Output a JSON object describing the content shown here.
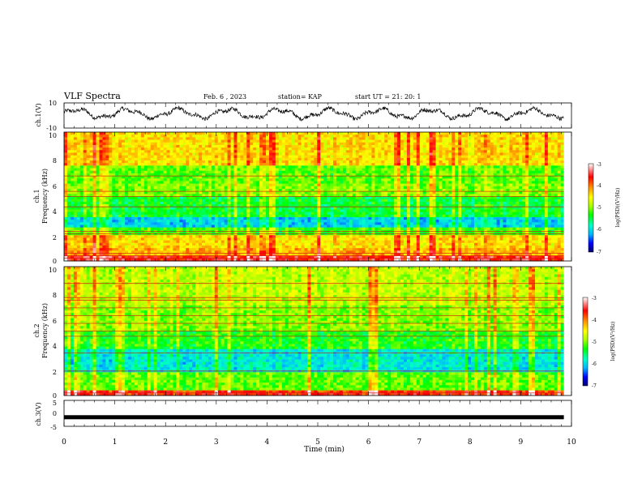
{
  "header": {
    "title": "VLF Spectra",
    "date": "Feb. 6 , 2023",
    "station": "station= KAP",
    "start": "start UT =   21: 20: 1"
  },
  "chart_data": [
    {
      "type": "line",
      "panel": "ch1-waveform",
      "ylabel": "ch.1(V)",
      "ylim": [
        -10,
        10
      ],
      "yticks": [
        "10",
        "-10"
      ],
      "xlim": [
        0,
        10
      ],
      "duration_min": 9.85,
      "note": "noisy waveform oscillating roughly between -4 and 7 V"
    },
    {
      "type": "heatmap",
      "panel": "ch1-spectrogram",
      "ylabel": "ch.1",
      "ylabel2": "Frequency (kHz)",
      "ylim": [
        0,
        10
      ],
      "yticks": [
        "0",
        "2",
        "4",
        "6",
        "8",
        "10"
      ],
      "colorbar": {
        "label": "log(PSD)(V²/Hz)",
        "range": [
          -7,
          -3
        ],
        "ticks": [
          "-3",
          "-4",
          "-5",
          "-6",
          "-7"
        ]
      },
      "bands": [
        {
          "lo": 0.0,
          "hi": 0.5,
          "level": -3.6
        },
        {
          "lo": 0.5,
          "hi": 1.0,
          "level": -4.2
        },
        {
          "lo": 1.0,
          "hi": 2.0,
          "level": -4.4
        },
        {
          "lo": 2.0,
          "hi": 2.6,
          "level": -5.2
        },
        {
          "lo": 2.6,
          "hi": 3.4,
          "level": -6.0
        },
        {
          "lo": 3.4,
          "hi": 5.0,
          "level": -5.4
        },
        {
          "lo": 5.0,
          "hi": 6.0,
          "level": -5.0
        },
        {
          "lo": 6.0,
          "hi": 7.5,
          "level": -5.1
        },
        {
          "lo": 7.5,
          "hi": 10.0,
          "level": -4.4
        }
      ],
      "lines_khz": [
        0.2,
        0.4,
        0.6,
        2.1,
        2.3,
        4.2,
        5.0,
        5.4,
        6.6
      ]
    },
    {
      "type": "heatmap",
      "panel": "ch2-spectrogram",
      "ylabel": "ch.2",
      "ylabel2": "Frequency (kHz)",
      "ylim": [
        0,
        10
      ],
      "yticks": [
        "0",
        "2",
        "4",
        "6",
        "8",
        "10"
      ],
      "colorbar": {
        "label": "log(PSD)(V²/Hz)",
        "range": [
          -7,
          -3
        ],
        "ticks": [
          "-3",
          "-4",
          "-5",
          "-6",
          "-7"
        ]
      },
      "bands": [
        {
          "lo": 0.0,
          "hi": 0.4,
          "level": -3.7
        },
        {
          "lo": 0.4,
          "hi": 1.8,
          "level": -5.1
        },
        {
          "lo": 1.8,
          "hi": 3.6,
          "level": -5.9
        },
        {
          "lo": 3.6,
          "hi": 5.0,
          "level": -5.3
        },
        {
          "lo": 5.0,
          "hi": 7.0,
          "level": -5.0
        },
        {
          "lo": 7.0,
          "hi": 10.0,
          "level": -4.8
        }
      ],
      "lines_khz": [
        0.2,
        1.9,
        3.3,
        4.6,
        5.0,
        5.6,
        6.2,
        6.8,
        7.4,
        7.6,
        8.7
      ]
    },
    {
      "type": "line",
      "panel": "ch3-waveform",
      "ylabel": "ch.3(V)",
      "ylim": [
        -5,
        5
      ],
      "yticks": [
        "5",
        "0",
        "-5"
      ],
      "level_v": -1.5,
      "xlabel": "Time (min)",
      "xlim": [
        0,
        10
      ],
      "xticks": [
        "0",
        "1",
        "2",
        "3",
        "4",
        "5",
        "6",
        "7",
        "8",
        "9",
        "10"
      ]
    }
  ],
  "colors": {
    "colormap": [
      "#000070",
      "#0000ff",
      "#00b4ff",
      "#00ffc8",
      "#00ff00",
      "#aaff00",
      "#ffff00",
      "#ff8800",
      "#ff0000",
      "#ff9999",
      "#ffffff"
    ]
  }
}
